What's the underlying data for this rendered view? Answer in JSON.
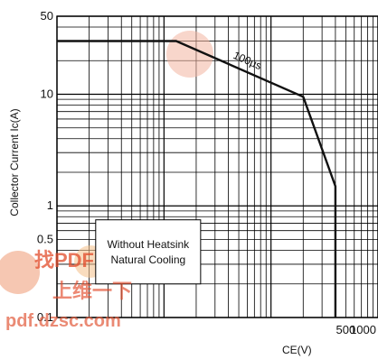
{
  "chart_data": {
    "type": "line",
    "title": "",
    "xlabel": "",
    "ylabel": "Collector Current Ic(A)",
    "xlabel_visible_fragment": "CE(V)",
    "xscale": "log",
    "yscale": "log",
    "xlim": [
      1,
      1000
    ],
    "ylim": [
      0.1,
      50
    ],
    "x_tick_labels": [
      "500",
      "1000"
    ],
    "y_tick_labels": [
      "50",
      "10",
      "1",
      "0.5",
      "0.1"
    ],
    "grid": true,
    "series": [
      {
        "name": "100μs",
        "x": [
          1,
          13,
          200,
          400,
          400
        ],
        "y": [
          30,
          30,
          9.5,
          1.5,
          0.1
        ]
      }
    ],
    "annotation": {
      "line1": "Without Heatsink",
      "line2": "Natural Cooling"
    },
    "colors": {
      "curve": "#111111",
      "grid": "#000000",
      "background": "#ffffff",
      "watermark": "#e46a4a"
    }
  },
  "watermark": {
    "line1": "找PDF",
    "line2": "上维一下",
    "url": "pdf.dzsc.com"
  }
}
